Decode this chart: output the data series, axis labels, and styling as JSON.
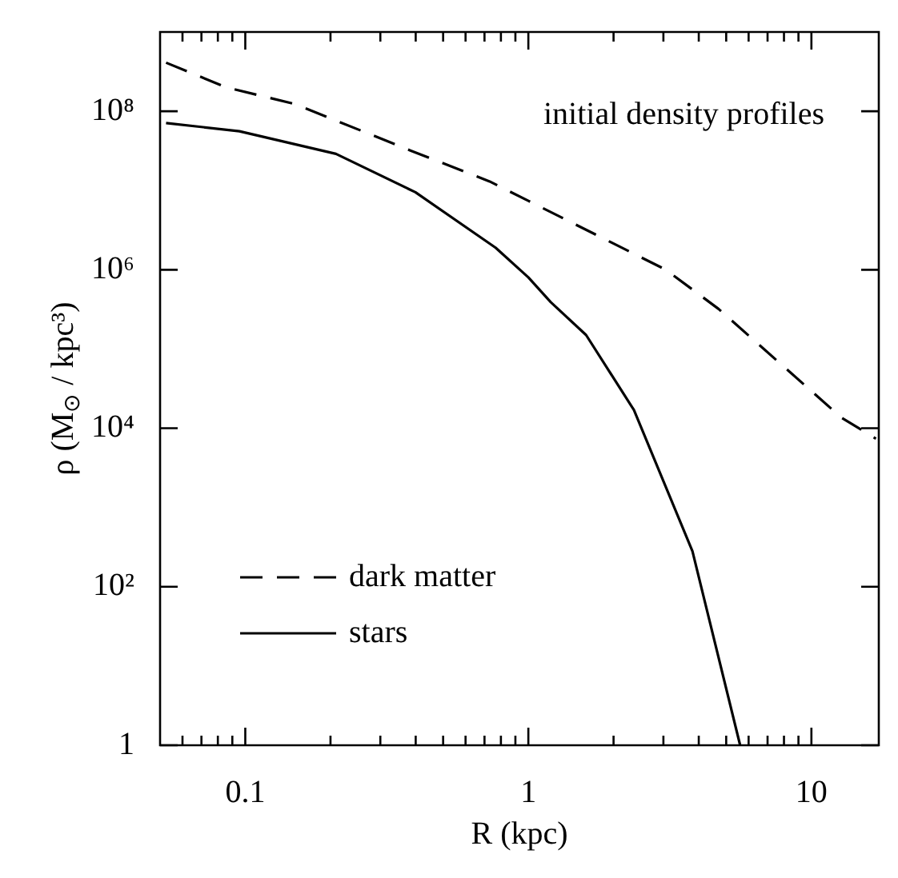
{
  "chart_data": {
    "type": "line",
    "xlabel": "R (kpc)",
    "ylabel": "ρ (M$_{⊙}$ / kpc³)",
    "log": "xy",
    "grid": false,
    "legend": "bottom left",
    "marker": "none",
    "annotations": [
      "initial density profiles"
    ],
    "xlim": [
      0.05,
      17.3
    ],
    "ylim": [
      1,
      1000000000
    ],
    "xticks": [
      {
        "value": 0.06,
        "label": null
      },
      {
        "value": 0.07,
        "label": null
      },
      {
        "value": 0.08,
        "label": null
      },
      {
        "value": 0.09,
        "label": null
      },
      0.1,
      {
        "value": 0.2,
        "label": null
      },
      {
        "value": 0.3,
        "label": null
      },
      {
        "value": 0.4,
        "label": null
      },
      {
        "value": 0.5,
        "label": null
      },
      {
        "value": 0.6,
        "label": null
      },
      {
        "value": 0.7,
        "label": null
      },
      {
        "value": 0.8,
        "label": null
      },
      {
        "value": 0.9,
        "label": null
      },
      1,
      {
        "value": 2,
        "label": null
      },
      {
        "value": 3,
        "label": null
      },
      {
        "value": 4,
        "label": null
      },
      {
        "value": 5,
        "label": null
      },
      {
        "value": 6,
        "label": null
      },
      {
        "value": 7,
        "label": null
      },
      {
        "value": 8,
        "label": null
      },
      {
        "value": 9,
        "label": null
      },
      10
    ],
    "yticks": [
      1,
      {
        "value": 100,
        "label": "10²"
      },
      {
        "value": 10000,
        "label": "10⁴"
      },
      {
        "value": 1000000,
        "label": "10⁶"
      },
      {
        "value": 100000000,
        "label": "10⁸"
      }
    ],
    "series": [
      {
        "name": "dark matter",
        "color": "#000000",
        "line_style": "dashed",
        "x": [
          0.0525,
          0.0857,
          0.15,
          0.383,
          0.73,
          1.0,
          3.06,
          4.7,
          12.8,
          16.9
        ],
        "values": [
          410000000,
          200000000,
          123000000,
          32000000,
          13000000,
          7400000,
          1000000,
          320000,
          13500,
          7400
        ]
      },
      {
        "name": "stars",
        "color": "#000000",
        "line_style": "solid",
        "x": [
          0.0525,
          0.0953,
          0.209,
          0.399,
          0.766,
          1.0,
          1.2,
          1.6,
          2.36,
          3.8,
          5.6
        ],
        "values": [
          71000000,
          56000000,
          29000000,
          9500000,
          1900000,
          800000,
          390000,
          150000,
          17000,
          280,
          1
        ]
      }
    ]
  }
}
